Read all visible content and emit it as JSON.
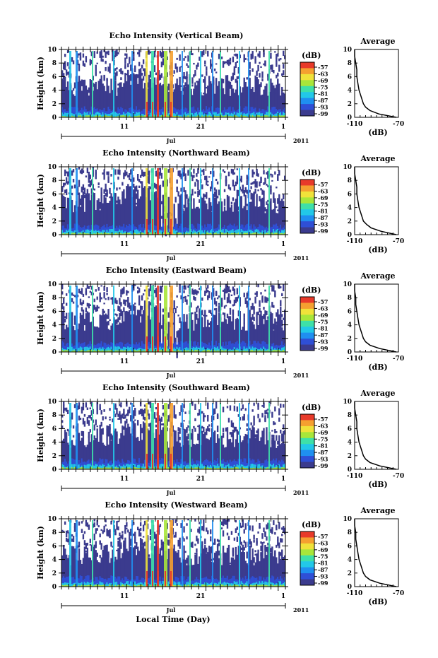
{
  "colors": {
    "scale": [
      "#3b3b8e",
      "#2f4fd6",
      "#1f8ff0",
      "#22c8e8",
      "#3ee0a8",
      "#a8e63a",
      "#f0e23a",
      "#f5a030",
      "#e83a2a"
    ],
    "background": "#ffffff"
  },
  "colorbar": {
    "unit": "(dB)",
    "ticks": [
      "-57",
      "-63",
      "-69",
      "-75",
      "-81",
      "-87",
      "-93",
      "-99"
    ]
  },
  "axis_common": {
    "x_day_labels": [
      "11",
      "21",
      "1"
    ],
    "month_label": "Jul",
    "year_label": "2011",
    "x_title": "Local Time (Day)",
    "y_title": "Height (km)",
    "y_ticks": [
      "0",
      "2",
      "4",
      "6",
      "8",
      "10"
    ]
  },
  "average_axis": {
    "title": "Average",
    "x_ticks": [
      "-110",
      "-70"
    ],
    "x_title": "(dB)",
    "y_ticks": [
      "0",
      "2",
      "4",
      "6",
      "8",
      "10"
    ]
  },
  "chart_data": [
    {
      "type": "heatmap",
      "title": "Echo Intensity (Vertical Beam)",
      "xlabel": "Local Time (Day)",
      "ylabel": "Height (km)",
      "ylim": [
        0,
        10
      ],
      "colorbar_range_db": [
        -99,
        -57
      ],
      "average_profile": {
        "height_km": [
          0,
          0.5,
          1,
          1.5,
          2,
          3,
          4,
          5,
          6,
          7,
          8,
          9,
          10
        ],
        "db": [
          -72,
          -88,
          -96,
          -100,
          -102,
          -104,
          -106,
          -107,
          -108,
          -108,
          -109,
          -110,
          -110
        ]
      }
    },
    {
      "type": "heatmap",
      "title": "Echo Intensity (Northward Beam)",
      "xlabel": "Local Time (Day)",
      "ylabel": "Height (km)",
      "ylim": [
        0,
        10
      ],
      "colorbar_range_db": [
        -99,
        -57
      ],
      "average_profile": {
        "height_km": [
          0,
          0.5,
          1,
          1.5,
          2,
          3,
          4,
          5,
          6,
          7,
          8,
          9,
          10
        ],
        "db": [
          -72,
          -86,
          -95,
          -99,
          -102,
          -104,
          -106,
          -107,
          -108,
          -108,
          -109,
          -110,
          -110
        ]
      }
    },
    {
      "type": "heatmap",
      "title": "Echo Intensity (Eastward Beam)",
      "xlabel": "Local Time (Day)",
      "ylabel": "Height (km)",
      "ylim": [
        0,
        10
      ],
      "colorbar_range_db": [
        -99,
        -57
      ],
      "average_profile": {
        "height_km": [
          0,
          0.5,
          1,
          1.5,
          2,
          3,
          4,
          5,
          6,
          7,
          8,
          9,
          10
        ],
        "db": [
          -72,
          -87,
          -96,
          -100,
          -102,
          -104,
          -106,
          -107,
          -108,
          -109,
          -109,
          -110,
          -110
        ]
      }
    },
    {
      "type": "heatmap",
      "title": "Echo Intensity (Southward Beam)",
      "xlabel": "Local Time (Day)",
      "ylabel": "Height (km)",
      "ylim": [
        0,
        10
      ],
      "colorbar_range_db": [
        -99,
        -57
      ],
      "average_profile": {
        "height_km": [
          0,
          0.5,
          1,
          1.5,
          2,
          3,
          4,
          5,
          6,
          7,
          8,
          9,
          10
        ],
        "db": [
          -72,
          -87,
          -96,
          -100,
          -102,
          -104,
          -106,
          -107,
          -108,
          -108,
          -109,
          -110,
          -110
        ]
      }
    },
    {
      "type": "heatmap",
      "title": "Echo Intensity (Westward Beam)",
      "xlabel": "Local Time (Day)",
      "ylabel": "Height (km)",
      "ylim": [
        0,
        10
      ],
      "colorbar_range_db": [
        -99,
        -57
      ],
      "average_profile": {
        "height_km": [
          0,
          0.5,
          1,
          1.5,
          2,
          3,
          4,
          5,
          6,
          7,
          8,
          9,
          10
        ],
        "db": [
          -72,
          -87,
          -96,
          -100,
          -102,
          -104,
          -106,
          -107,
          -108,
          -109,
          -109,
          -110,
          -110
        ]
      }
    }
  ]
}
